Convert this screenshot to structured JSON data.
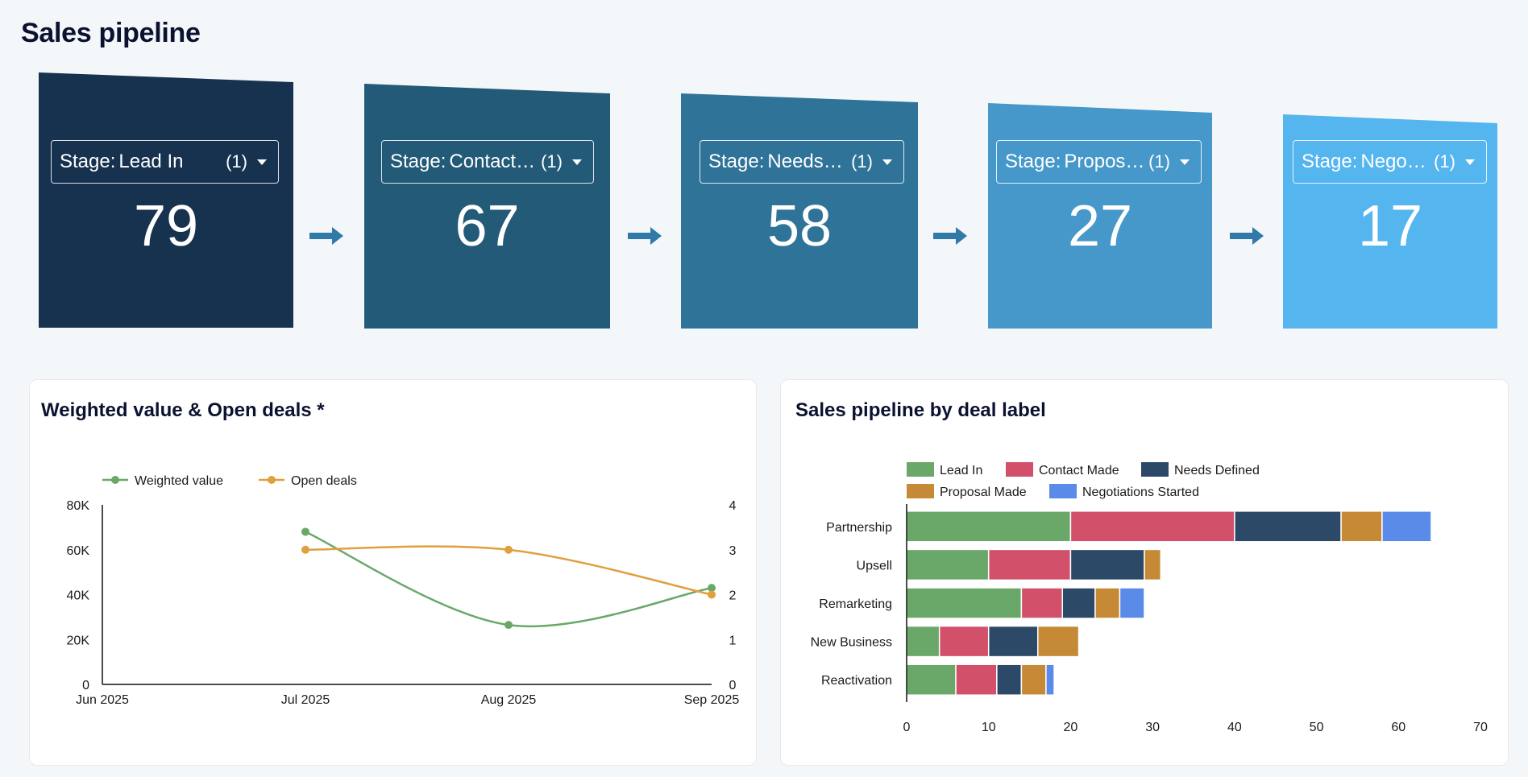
{
  "page": {
    "title": "Sales pipeline"
  },
  "stages": [
    {
      "label": "Stage:",
      "value": "Lead In",
      "count_badge": "(1)",
      "total": "79",
      "color": "#17324f"
    },
    {
      "label": "Stage:",
      "value": "Contact …",
      "count_badge": "(1)",
      "total": "67",
      "color": "#235a78"
    },
    {
      "label": "Stage:",
      "value": "Needs …",
      "count_badge": "(1)",
      "total": "58",
      "color": "#307399"
    },
    {
      "label": "Stage:",
      "value": "Propos…",
      "count_badge": "(1)",
      "total": "27",
      "color": "#4598c9"
    },
    {
      "label": "Stage:",
      "value": "Negoti…",
      "count_badge": "(1)",
      "total": "17",
      "color": "#54b5ef"
    }
  ],
  "arrow_color": "#2f7aa8",
  "chart_data": [
    {
      "type": "line",
      "title": "Weighted value & Open deals *",
      "x": [
        "Jun 2025",
        "Jul 2025",
        "Aug 2025",
        "Sep 2025"
      ],
      "series": [
        {
          "name": "Weighted value",
          "axis": "left",
          "color": "#6aa86a",
          "values": [
            null,
            68000,
            26500,
            43000
          ]
        },
        {
          "name": "Open deals",
          "axis": "right",
          "color": "#e19f3e",
          "values": [
            null,
            3,
            3,
            2
          ]
        }
      ],
      "y_left": {
        "min": 0,
        "max": 80000,
        "ticks": [
          0,
          20000,
          40000,
          60000,
          80000
        ],
        "tick_labels": [
          "0",
          "20K",
          "40K",
          "60K",
          "80K"
        ]
      },
      "y_right": {
        "min": 0,
        "max": 4,
        "ticks": [
          0,
          1,
          2,
          3,
          4
        ],
        "tick_labels": [
          "0",
          "1",
          "2",
          "3",
          "4"
        ]
      },
      "legend": "top-left"
    },
    {
      "type": "bar",
      "orientation": "horizontal",
      "stacked": true,
      "title": "Sales pipeline by deal label",
      "categories": [
        "Partnership",
        "Upsell",
        "Remarketing",
        "New Business",
        "Reactivation"
      ],
      "series": [
        {
          "name": "Lead In",
          "color": "#6aa86a",
          "values": [
            20,
            10,
            14,
            4,
            6
          ]
        },
        {
          "name": "Contact Made",
          "color": "#d2506a",
          "values": [
            20,
            10,
            5,
            6,
            5
          ]
        },
        {
          "name": "Needs Defined",
          "color": "#2c4a68",
          "values": [
            13,
            9,
            4,
            6,
            3
          ]
        },
        {
          "name": "Proposal Made",
          "color": "#c68a37",
          "values": [
            5,
            2,
            3,
            5,
            3
          ]
        },
        {
          "name": "Negotiations Started",
          "color": "#5b8be8",
          "values": [
            6,
            0,
            3,
            0,
            1
          ]
        }
      ],
      "xlim": [
        0,
        70
      ],
      "x_ticks": [
        "0",
        "10",
        "20",
        "30",
        "40",
        "50",
        "60",
        "70"
      ],
      "legend": "top"
    }
  ]
}
